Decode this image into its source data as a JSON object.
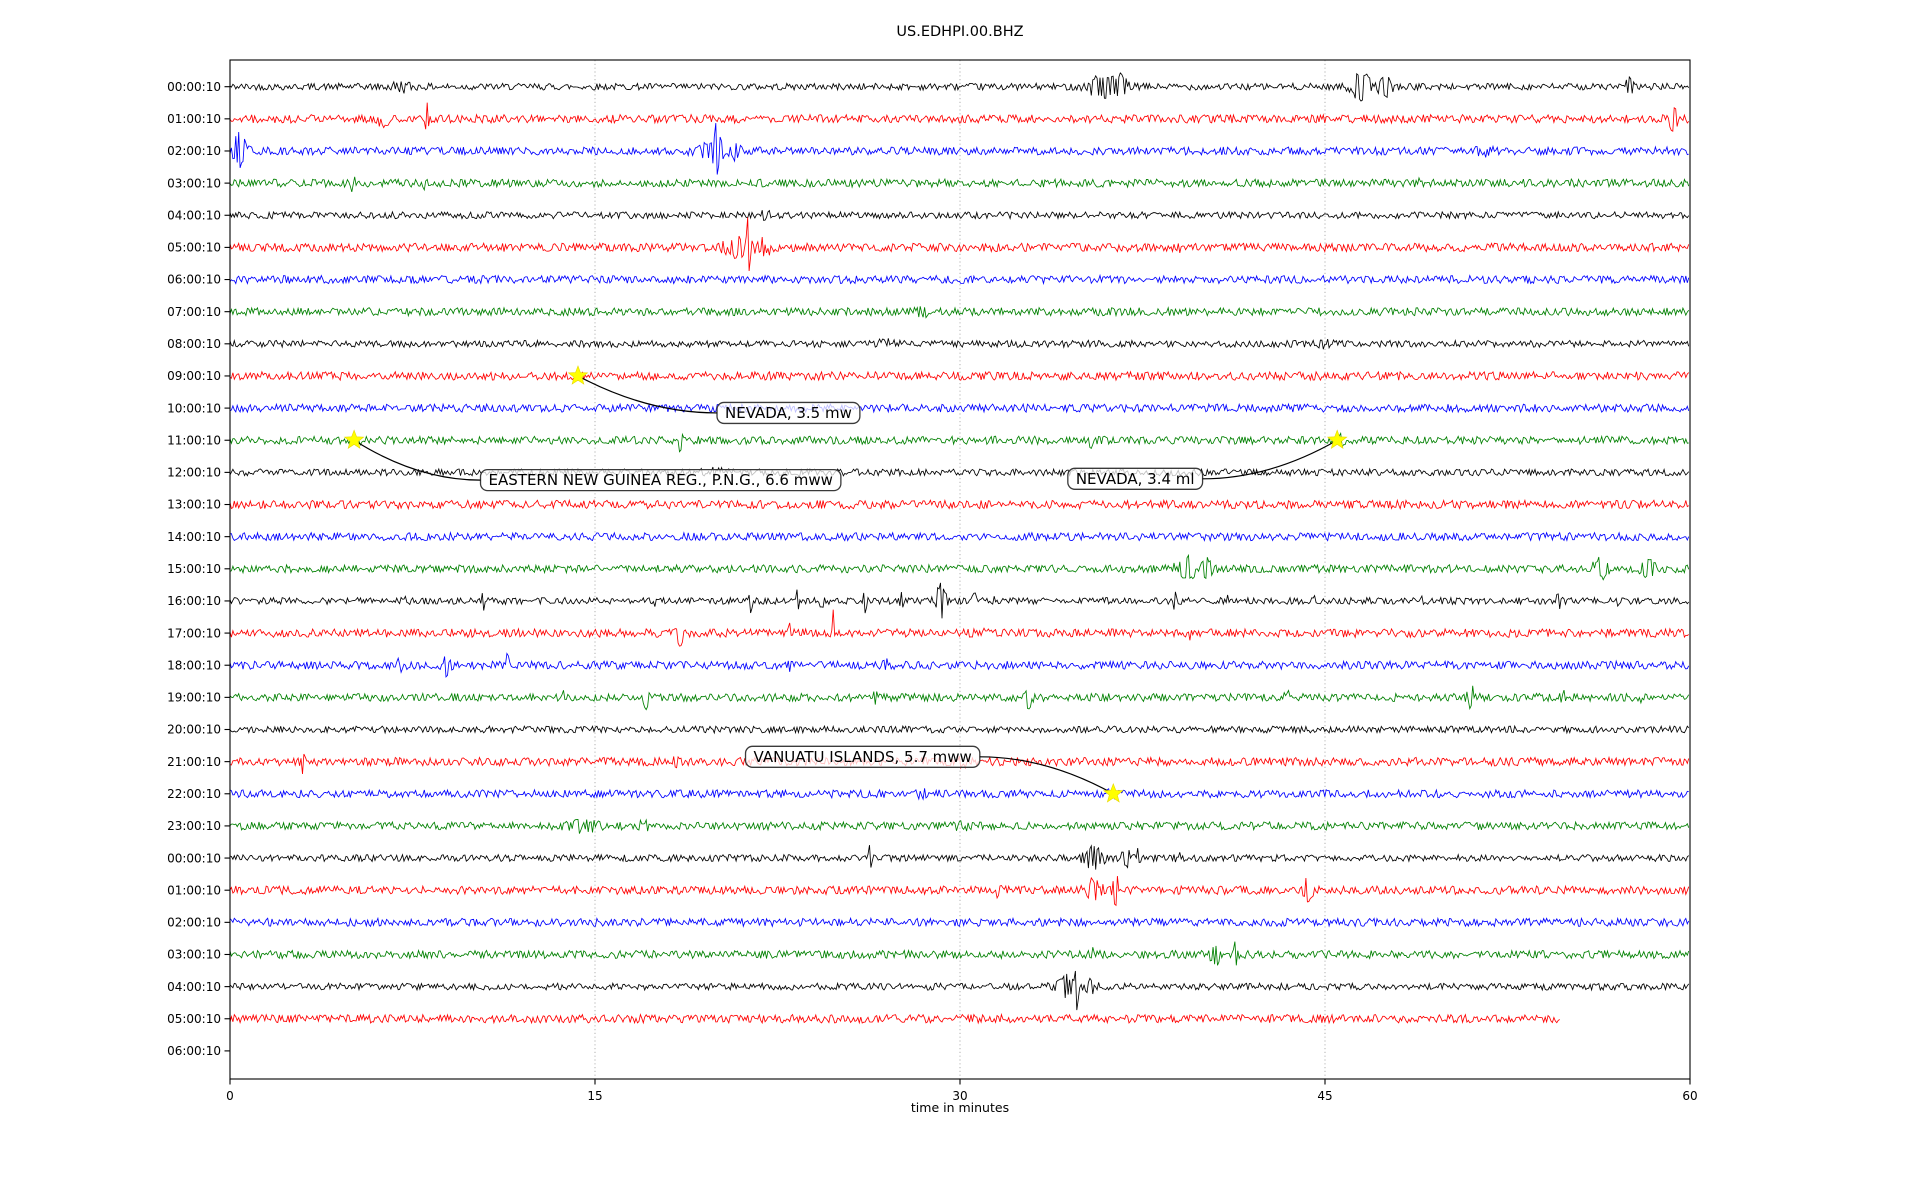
{
  "title": "US.EDHPI.00.BHZ",
  "xlabel": "time in minutes",
  "chart_data": {
    "type": "line",
    "subtype": "helicorder-seismogram",
    "title": "US.EDHPI.00.BHZ",
    "xlabel": "time in minutes",
    "xlim": [
      0,
      60
    ],
    "x_ticks": [
      0,
      15,
      30,
      45,
      60
    ],
    "grid_minutes": [
      15,
      30,
      45
    ],
    "grid_style": "dotted",
    "colors": {
      "black": "#000000",
      "red": "#ff0000",
      "blue": "#0000ff",
      "green": "#008000",
      "grid": "#aaaaaa",
      "star": "#ffff00",
      "annotation_border": "#3a3a3a"
    },
    "rows": [
      {
        "label": "00:00:10",
        "color": "black",
        "end_minute": 60,
        "events": [
          [
            7,
            0.5,
            0.5
          ],
          [
            35.8,
            1.5,
            0.5
          ],
          [
            36.6,
            1.3,
            0.3
          ],
          [
            46.5,
            1.7,
            0.4
          ],
          [
            47.5,
            1.0,
            0.3
          ],
          [
            57.5,
            0.9,
            0.2
          ]
        ]
      },
      {
        "label": "01:00:10",
        "color": "red",
        "end_minute": 60,
        "events": [
          [
            6.3,
            0.7,
            0.2
          ],
          [
            8.1,
            1.7,
            0.07
          ],
          [
            59.3,
            1.1,
            0.2
          ]
        ]
      },
      {
        "label": "02:00:10",
        "color": "blue",
        "end_minute": 60,
        "events": [
          [
            0.4,
            2.0,
            0.25
          ],
          [
            19.8,
            0.9,
            0.6
          ],
          [
            20.0,
            2.1,
            0.12
          ],
          [
            20.8,
            0.9,
            0.15
          ],
          [
            51.5,
            0.5,
            0.3
          ]
        ]
      },
      {
        "label": "03:00:10",
        "color": "green",
        "end_minute": 60,
        "events": [
          [
            5.0,
            0.7,
            0.15
          ],
          [
            7.9,
            0.6,
            0.15
          ],
          [
            48.8,
            0.5,
            0.1
          ]
        ]
      },
      {
        "label": "04:00:10",
        "color": "black",
        "end_minute": 60,
        "events": [
          [
            22,
            0.35,
            0.3
          ]
        ]
      },
      {
        "label": "05:00:10",
        "color": "red",
        "end_minute": 60,
        "events": [
          [
            20.8,
            0.9,
            0.5
          ],
          [
            21.3,
            3.6,
            0.06
          ],
          [
            21.9,
            0.7,
            0.4
          ],
          [
            39,
            0.8,
            0.05
          ]
        ]
      },
      {
        "label": "06:00:10",
        "color": "blue",
        "end_minute": 60,
        "events": []
      },
      {
        "label": "07:00:10",
        "color": "green",
        "end_minute": 60,
        "events": [
          [
            28.5,
            0.45,
            0.3
          ]
        ]
      },
      {
        "label": "08:00:10",
        "color": "black",
        "end_minute": 60,
        "events": [
          [
            27,
            0.35,
            0.4
          ],
          [
            45,
            0.3,
            0.3
          ]
        ]
      },
      {
        "label": "09:00:10",
        "color": "red",
        "end_minute": 60,
        "events": [
          [
            14.4,
            0.45,
            0.2
          ]
        ]
      },
      {
        "label": "10:00:10",
        "color": "blue",
        "end_minute": 60,
        "events": []
      },
      {
        "label": "11:00:10",
        "color": "green",
        "end_minute": 60,
        "events": [
          [
            5.2,
            0.45,
            0.15
          ],
          [
            18.5,
            1.0,
            0.1
          ],
          [
            35.4,
            0.8,
            0.1
          ],
          [
            45.6,
            0.5,
            0.2
          ]
        ]
      },
      {
        "label": "12:00:10",
        "color": "black",
        "end_minute": 60,
        "events": [
          [
            20,
            0.3,
            0.5
          ]
        ]
      },
      {
        "label": "13:00:10",
        "color": "red",
        "end_minute": 60,
        "events": []
      },
      {
        "label": "14:00:10",
        "color": "blue",
        "end_minute": 60,
        "events": []
      },
      {
        "label": "15:00:10",
        "color": "green",
        "end_minute": 60,
        "events": [
          [
            39.3,
            1.3,
            0.4
          ],
          [
            40.1,
            0.9,
            0.3
          ],
          [
            56.3,
            1.0,
            0.3
          ],
          [
            58.3,
            0.7,
            0.3
          ]
        ]
      },
      {
        "label": "16:00:10",
        "color": "black",
        "end_minute": 60,
        "events": [
          [
            7.3,
            0.6,
            0.15
          ],
          [
            10.4,
            1.8,
            0.06
          ],
          [
            17.5,
            0.5,
            0.1
          ],
          [
            21.4,
            1.5,
            0.08
          ],
          [
            23.3,
            1.8,
            0.06
          ],
          [
            24.3,
            1.0,
            0.1
          ],
          [
            26.1,
            1.3,
            0.08
          ],
          [
            27.6,
            1.0,
            0.08
          ],
          [
            29.2,
            2.1,
            0.2
          ],
          [
            30.6,
            1.1,
            0.08
          ],
          [
            31.5,
            0.7,
            0.1
          ],
          [
            38.8,
            1.0,
            0.1
          ],
          [
            41,
            0.7,
            0.1
          ],
          [
            44.5,
            0.5,
            0.1
          ],
          [
            49,
            0.6,
            0.1
          ],
          [
            54.6,
            0.9,
            0.15
          ],
          [
            57,
            0.5,
            0.1
          ]
        ]
      },
      {
        "label": "17:00:10",
        "color": "red",
        "end_minute": 60,
        "events": [
          [
            1.5,
            0.5,
            0.1
          ],
          [
            18.5,
            1.4,
            0.12
          ],
          [
            23,
            0.7,
            0.08
          ],
          [
            24.8,
            2.4,
            0.04
          ],
          [
            31,
            0.45,
            0.1
          ],
          [
            39.5,
            0.45,
            0.1
          ]
        ]
      },
      {
        "label": "18:00:10",
        "color": "blue",
        "end_minute": 60,
        "events": [
          [
            7,
            0.45,
            0.2
          ],
          [
            8.9,
            0.9,
            0.15
          ],
          [
            11.4,
            1.3,
            0.06
          ],
          [
            23,
            0.45,
            0.1
          ],
          [
            27,
            0.35,
            0.2
          ]
        ]
      },
      {
        "label": "19:00:10",
        "color": "green",
        "end_minute": 60,
        "events": [
          [
            13.7,
            0.5,
            0.1
          ],
          [
            17.1,
            1.1,
            0.1
          ],
          [
            26.5,
            0.45,
            0.1
          ],
          [
            32.8,
            0.9,
            0.2
          ],
          [
            43.5,
            0.45,
            0.15
          ],
          [
            51,
            1.1,
            0.15
          ],
          [
            54.8,
            0.6,
            0.1
          ],
          [
            58,
            0.45,
            0.1
          ]
        ]
      },
      {
        "label": "20:00:10",
        "color": "black",
        "end_minute": 60,
        "events": []
      },
      {
        "label": "21:00:10",
        "color": "red",
        "end_minute": 60,
        "events": [
          [
            3.0,
            1.4,
            0.06
          ],
          [
            18.3,
            0.5,
            0.1
          ],
          [
            30,
            0.3,
            0.4
          ]
        ]
      },
      {
        "label": "22:00:10",
        "color": "blue",
        "end_minute": 60,
        "events": [
          [
            28.5,
            0.45,
            0.2
          ],
          [
            36.3,
            0.35,
            0.2
          ]
        ]
      },
      {
        "label": "23:00:10",
        "color": "green",
        "end_minute": 60,
        "events": [
          [
            14.5,
            0.45,
            0.6
          ],
          [
            17,
            0.5,
            0.15
          ],
          [
            30,
            0.35,
            0.3
          ]
        ]
      },
      {
        "label": "00:00:10",
        "color": "black",
        "end_minute": 60,
        "events": [
          [
            26.3,
            1.8,
            0.06
          ],
          [
            35.5,
            1.4,
            0.4
          ],
          [
            36.8,
            1.1,
            0.2
          ],
          [
            37.3,
            0.9,
            0.08
          ],
          [
            39,
            0.5,
            0.2
          ]
        ]
      },
      {
        "label": "01:00:10",
        "color": "red",
        "end_minute": 60,
        "events": [
          [
            31.5,
            0.6,
            0.15
          ],
          [
            35.5,
            1.0,
            0.3
          ],
          [
            36.4,
            2.1,
            0.1
          ],
          [
            44.3,
            1.2,
            0.2
          ]
        ]
      },
      {
        "label": "02:00:10",
        "color": "blue",
        "end_minute": 60,
        "events": []
      },
      {
        "label": "03:00:10",
        "color": "green",
        "end_minute": 60,
        "events": [
          [
            35.5,
            0.45,
            0.1
          ],
          [
            40.5,
            1.1,
            0.2
          ],
          [
            41.3,
            1.8,
            0.06
          ]
        ]
      },
      {
        "label": "04:00:10",
        "color": "black",
        "end_minute": 60,
        "events": [
          [
            34.3,
            1.4,
            0.4
          ],
          [
            34.8,
            4.0,
            0.06
          ],
          [
            35.4,
            0.9,
            0.2
          ]
        ]
      },
      {
        "label": "05:00:10",
        "color": "red",
        "end_minute": 54.7,
        "events": []
      },
      {
        "label": "06:00:10",
        "color": "black",
        "end_minute": 0,
        "events": []
      }
    ],
    "annotations": [
      {
        "label": "NEVADA, 3.5 mw",
        "star_row": 9,
        "star_minute": 14.3,
        "box_row": 10.15,
        "box_minute": 22.95
      },
      {
        "label": "EASTERN NEW GUINEA REG., P.N.G., 6.6 mww",
        "star_row": 11,
        "star_minute": 5.1,
        "box_row": 12.24,
        "box_minute": 17.7
      },
      {
        "label": "NEVADA, 3.4 ml",
        "star_row": 11,
        "star_minute": 45.5,
        "box_row": 12.2,
        "box_minute": 37.2
      },
      {
        "label": "VANUATU ISLANDS, 5.7 mww",
        "star_row": 22,
        "star_minute": 36.3,
        "box_row": 20.85,
        "box_minute": 26.0
      }
    ]
  }
}
